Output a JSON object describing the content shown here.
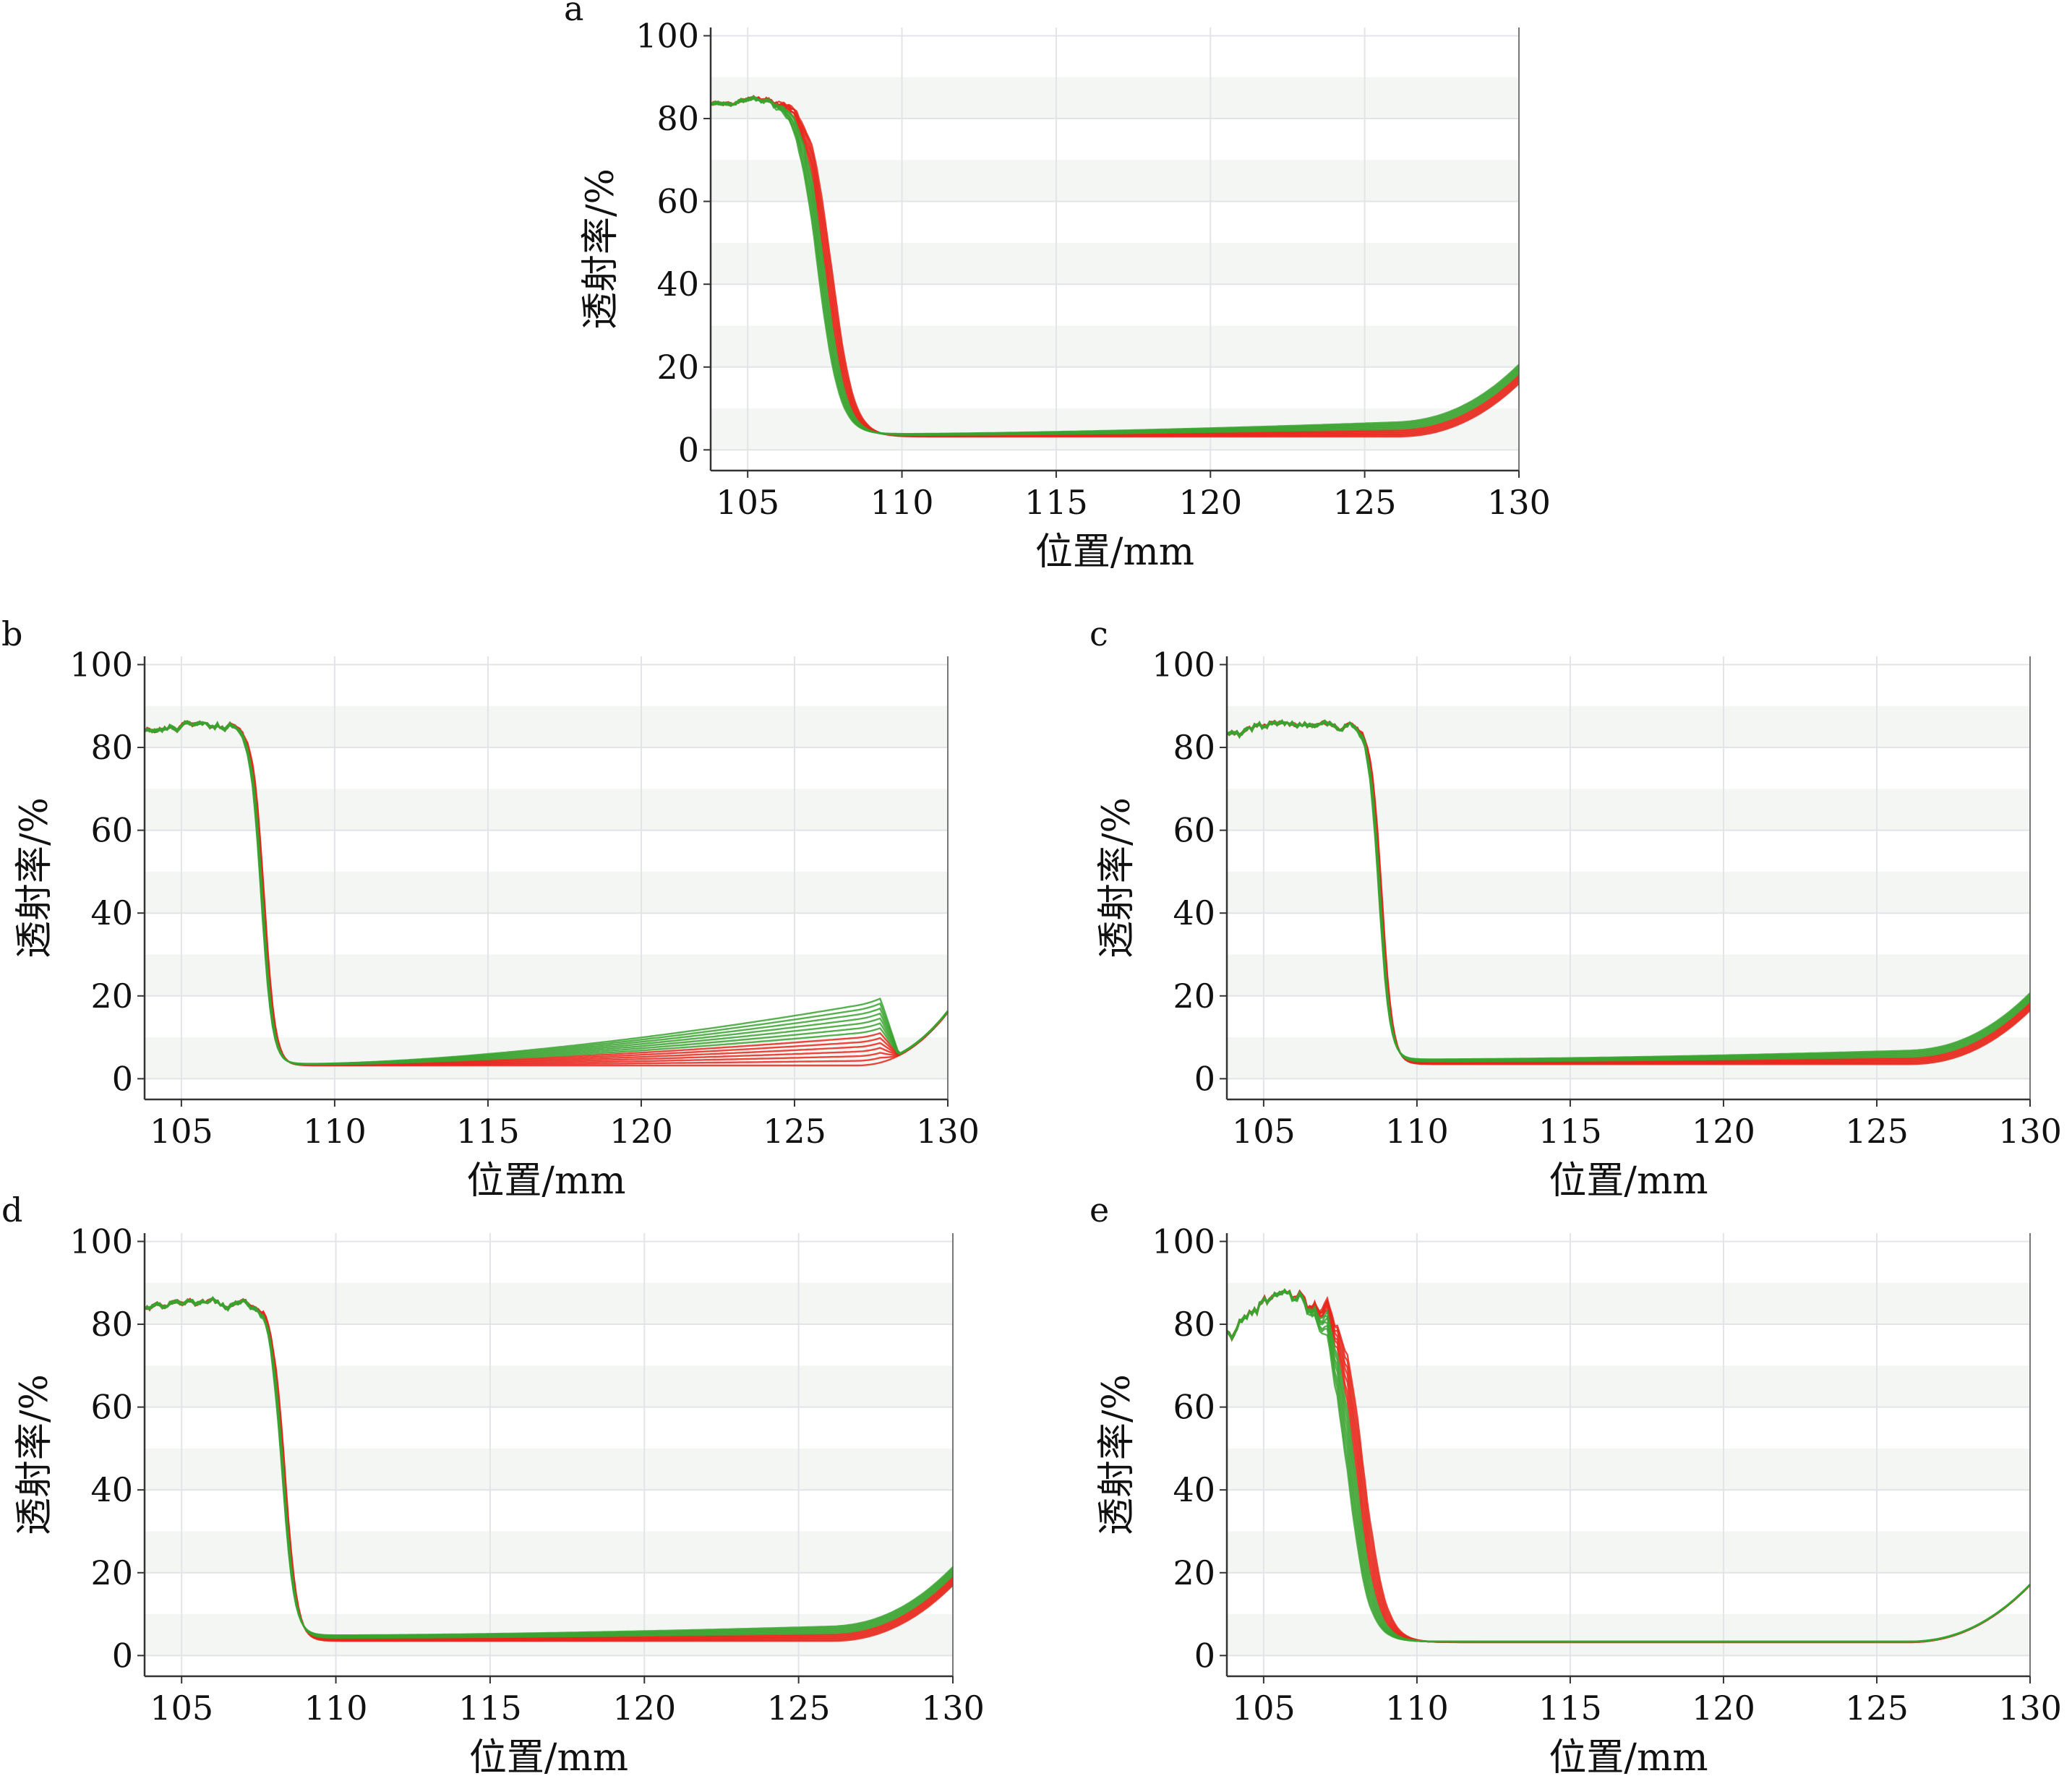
{
  "chart_data": [
    {
      "type": "line",
      "panel_label": "a",
      "xlabel": "位置/mm",
      "ylabel": "透射率/%",
      "xlim": [
        103.8,
        130
      ],
      "ylim": [
        -5,
        102
      ],
      "xticks": [
        "105",
        "110",
        "115",
        "120",
        "125",
        "130"
      ],
      "yticks": [
        "0",
        "20",
        "40",
        "60",
        "80",
        "100"
      ],
      "grid": true,
      "x_edge": 107.5,
      "edge_width": 0.35,
      "edge_spread": 0.45,
      "top_level": 84.5,
      "start_level": 83,
      "floor": 3.2,
      "floor_spread": 0.6,
      "tail_start": 126,
      "tail_end": 16,
      "green_rise": 4,
      "noise": 1.3,
      "series": [
        {
          "color": "#e8271b"
        },
        {
          "color": "#3aa32f"
        }
      ]
    },
    {
      "type": "line",
      "panel_label": "b",
      "xlabel": "位置/mm",
      "ylabel": "透射率/%",
      "xlim": [
        103.8,
        130
      ],
      "ylim": [
        -5,
        102
      ],
      "xticks": [
        "105",
        "110",
        "115",
        "120",
        "125",
        "130"
      ],
      "yticks": [
        "0",
        "20",
        "40",
        "60",
        "80",
        "100"
      ],
      "grid": true,
      "x_edge": 107.65,
      "edge_width": 0.18,
      "edge_spread": 0.1,
      "top_level": 85,
      "start_level": 83.5,
      "floor": 3.2,
      "floor_spread": 0.4,
      "tail_start": 127,
      "tail_end": 16,
      "green_rise": 18,
      "peak_x": 127.8,
      "noise": 1.4,
      "series": [
        {
          "color": "#e8271b"
        },
        {
          "color": "#3aa32f"
        }
      ]
    },
    {
      "type": "line",
      "panel_label": "c",
      "xlabel": "位置/mm",
      "ylabel": "透射率/%",
      "xlim": [
        103.8,
        130
      ],
      "ylim": [
        -5,
        102
      ],
      "xticks": [
        "105",
        "110",
        "115",
        "120",
        "125",
        "130"
      ],
      "yticks": [
        "0",
        "20",
        "40",
        "60",
        "80",
        "100"
      ],
      "grid": true,
      "x_edge": 108.8,
      "edge_width": 0.18,
      "edge_spread": 0.1,
      "top_level": 85.5,
      "start_level": 83,
      "floor": 3.5,
      "floor_spread": 1.2,
      "tail_start": 126,
      "tail_end": 16.5,
      "green_rise": 3,
      "noise": 1.6,
      "series": [
        {
          "color": "#e8271b"
        },
        {
          "color": "#3aa32f"
        }
      ]
    },
    {
      "type": "line",
      "panel_label": "d",
      "xlabel": "位置/mm",
      "ylabel": "透射率/%",
      "xlim": [
        103.8,
        130
      ],
      "ylim": [
        -5,
        102
      ],
      "xticks": [
        "105",
        "110",
        "115",
        "120",
        "125",
        "130"
      ],
      "yticks": [
        "0",
        "20",
        "40",
        "60",
        "80",
        "100"
      ],
      "grid": true,
      "x_edge": 108.3,
      "edge_width": 0.2,
      "edge_spread": 0.1,
      "top_level": 85,
      "start_level": 83.5,
      "floor": 3.5,
      "floor_spread": 1.4,
      "tail_start": 126,
      "tail_end": 17,
      "green_rise": 3,
      "noise": 1.5,
      "series": [
        {
          "color": "#e8271b"
        },
        {
          "color": "#3aa32f"
        }
      ]
    },
    {
      "type": "line",
      "panel_label": "e",
      "xlabel": "位置/mm",
      "ylabel": "透射率/%",
      "xlim": [
        103.8,
        130
      ],
      "ylim": [
        -5,
        102
      ],
      "xticks": [
        "105",
        "110",
        "115",
        "120",
        "125",
        "130"
      ],
      "yticks": [
        "0",
        "20",
        "40",
        "60",
        "80",
        "100"
      ],
      "grid": true,
      "x_edge": 108,
      "edge_width": 0.35,
      "edge_spread": 0.55,
      "top_level": 86,
      "start_level": 78,
      "floor": 3.2,
      "floor_spread": 0.2,
      "tail_start": 126,
      "tail_end": 17,
      "green_rise": 0,
      "noise": 3.5,
      "series": [
        {
          "color": "#e8271b"
        },
        {
          "color": "#3aa32f"
        }
      ]
    }
  ]
}
